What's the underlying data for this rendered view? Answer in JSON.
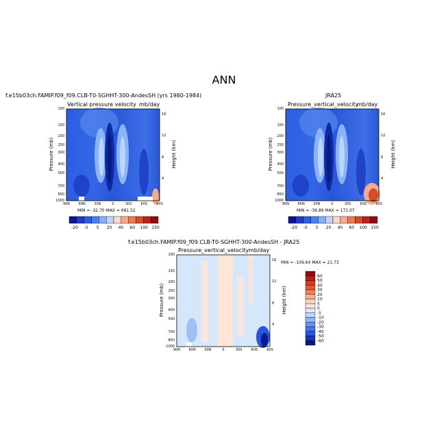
{
  "main_title": "ANN",
  "panels": [
    {
      "case": "f.e15b03ch.FAMIP.f09_f09.CLB-T0-SGHHT-300-AndesSH (yrs 1980-1984)",
      "title": "Vertical pressure velocity",
      "units": "mb/day",
      "minmax": "MIN = -32.70   MAX = 681.52"
    },
    {
      "case": "JRA25",
      "title": "Pressure_vertical_velocity",
      "units": "mb/day",
      "minmax": "MIN = -36.89   MAX = 171.07"
    },
    {
      "case": "f.e15b03ch.FAMIP.f09_f09.CLB-T0-SGHHT-300-AndesSH - JRA25",
      "title": "Pressure_vertical_velocity",
      "units": "mb/day",
      "minmax": "MIN = -106.64   MAX =  21.73"
    }
  ],
  "axes": {
    "ylabel": "Pressure (mb)",
    "y2label": "Height (km)",
    "pressure_ticks": [
      "100",
      "150",
      "200",
      "250",
      "300",
      "400",
      "500",
      "700",
      "850",
      "1000"
    ],
    "height_ticks": [
      "16",
      "12",
      "8",
      "4"
    ],
    "lat_ticks": [
      "90N",
      "60N",
      "30N",
      "0",
      "30S",
      "60S",
      "90S"
    ]
  },
  "colorbar_top": {
    "labels": [
      "-20",
      "-5",
      "5",
      "20",
      "40",
      "60",
      "100",
      "150"
    ],
    "colors": [
      "#08178f",
      "#1e3cc4",
      "#2c5de6",
      "#4a7ff0",
      "#84aef6",
      "#bcd5fb",
      "#f9d9c7",
      "#f4ab8b",
      "#ec7a55",
      "#d84a2c",
      "#b8241b",
      "#8c0d0d"
    ]
  },
  "colorbar_diff": {
    "labels": [
      "60",
      "50",
      "40",
      "30",
      "20",
      "10",
      "5",
      "0",
      "-5",
      "-10",
      "-20",
      "-30",
      "-40",
      "-50",
      "-60"
    ],
    "colors": [
      "#8c0d0d",
      "#b61f18",
      "#d2391f",
      "#e65a33",
      "#f0825b",
      "#f6ad8a",
      "#fbd2bb",
      "#fde6d8",
      "#dbe9fb",
      "#bcd3f8",
      "#93b5f3",
      "#6a94ee",
      "#4674e8",
      "#2a55d8",
      "#1737b8",
      "#08178f"
    ]
  },
  "chart_data": [
    {
      "type": "heatmap",
      "title": "Vertical pressure velocity",
      "units": "mb/day",
      "x": [
        "90N",
        "60N",
        "30N",
        "0",
        "30S",
        "60S",
        "90S"
      ],
      "y_pressure_mb": [
        100,
        150,
        200,
        250,
        300,
        400,
        500,
        700,
        850,
        1000
      ],
      "y2_height_km": [
        16,
        12,
        8,
        4
      ],
      "min": -32.7,
      "max": 681.52
    },
    {
      "type": "heatmap",
      "title": "Pressure_vertical_velocity",
      "units": "mb/day",
      "x": [
        "90N",
        "60N",
        "30N",
        "0",
        "30S",
        "60S",
        "90S"
      ],
      "y_pressure_mb": [
        100,
        150,
        200,
        250,
        300,
        400,
        500,
        700,
        850,
        1000
      ],
      "y2_height_km": [
        16,
        12,
        8,
        4
      ],
      "min": -36.89,
      "max": 171.07
    },
    {
      "type": "heatmap",
      "title": "Pressure_vertical_velocity",
      "units": "mb/day",
      "x": [
        "90N",
        "60N",
        "30N",
        "0",
        "30S",
        "60S",
        "90S"
      ],
      "y_pressure_mb": [
        100,
        150,
        200,
        250,
        300,
        400,
        500,
        700,
        850,
        1000
      ],
      "y2_height_km": [
        16,
        12,
        8,
        4
      ],
      "min": -106.64,
      "max": 21.73
    }
  ]
}
